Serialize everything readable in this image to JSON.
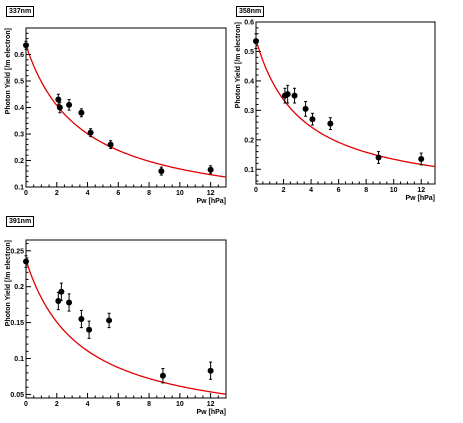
{
  "chart_data": [
    {
      "type": "scatter",
      "title": "337nm",
      "xlabel": "Pw [hPa]",
      "ylabel": "Photon Yield [/m electron]",
      "xlim": [
        0,
        13
      ],
      "ylim": [
        0.1,
        0.7
      ],
      "xticks": [
        0,
        2,
        4,
        6,
        8,
        10,
        12
      ],
      "yticks": [
        0.1,
        0.2,
        0.3,
        0.4,
        0.5,
        0.6
      ],
      "ytick_labels": [
        "0.1",
        "0.2",
        "0.3",
        "0.4",
        "0.5",
        "0.6"
      ],
      "points": [
        {
          "x": 0.0,
          "y": 0.635,
          "err": 0.015
        },
        {
          "x": 2.1,
          "y": 0.43,
          "err": 0.02
        },
        {
          "x": 2.2,
          "y": 0.4,
          "err": 0.02
        },
        {
          "x": 2.8,
          "y": 0.41,
          "err": 0.02
        },
        {
          "x": 3.6,
          "y": 0.38,
          "err": 0.015
        },
        {
          "x": 4.2,
          "y": 0.305,
          "err": 0.015
        },
        {
          "x": 5.5,
          "y": 0.26,
          "err": 0.015
        },
        {
          "x": 8.8,
          "y": 0.16,
          "err": 0.015
        },
        {
          "x": 12.0,
          "y": 0.165,
          "err": 0.015
        }
      ],
      "fit": {
        "y0": 0.635,
        "p": 3.6
      },
      "grid": false,
      "fit_color": "#e00000",
      "marker_color": "#000000"
    },
    {
      "type": "scatter",
      "title": "358nm",
      "xlabel": "Pw [hPa]",
      "ylabel": "Photon Yield [/m electron]",
      "xlim": [
        0,
        13
      ],
      "ylim": [
        0.05,
        0.6
      ],
      "xticks": [
        0,
        2,
        4,
        6,
        8,
        10,
        12
      ],
      "yticks": [
        0.1,
        0.2,
        0.3,
        0.4,
        0.5,
        0.6
      ],
      "ytick_labels": [
        "0.1",
        "0.2",
        "0.3",
        "0.4",
        "0.5",
        "0.6"
      ],
      "points": [
        {
          "x": 0.0,
          "y": 0.535,
          "err": 0.025
        },
        {
          "x": 2.1,
          "y": 0.35,
          "err": 0.025
        },
        {
          "x": 2.3,
          "y": 0.355,
          "err": 0.03
        },
        {
          "x": 2.8,
          "y": 0.35,
          "err": 0.025
        },
        {
          "x": 3.6,
          "y": 0.305,
          "err": 0.025
        },
        {
          "x": 4.1,
          "y": 0.27,
          "err": 0.02
        },
        {
          "x": 5.4,
          "y": 0.255,
          "err": 0.02
        },
        {
          "x": 8.9,
          "y": 0.14,
          "err": 0.02
        },
        {
          "x": 12.0,
          "y": 0.135,
          "err": 0.02
        }
      ],
      "fit": {
        "y0": 0.54,
        "p": 3.3
      },
      "grid": false,
      "fit_color": "#e00000",
      "marker_color": "#000000"
    },
    {
      "type": "scatter",
      "title": "391nm",
      "xlabel": "Pw [hPa]",
      "ylabel": "Photon Yield [/m electron]",
      "xlim": [
        0,
        13
      ],
      "ylim": [
        0.045,
        0.265
      ],
      "xticks": [
        0,
        2,
        4,
        6,
        8,
        10,
        12
      ],
      "yticks": [
        0.05,
        0.1,
        0.15,
        0.2,
        0.25
      ],
      "ytick_labels": [
        "0.05",
        "0.1",
        "0.15",
        "0.2",
        "0.25"
      ],
      "points": [
        {
          "x": 0.0,
          "y": 0.235,
          "err": 0.008
        },
        {
          "x": 2.1,
          "y": 0.18,
          "err": 0.012
        },
        {
          "x": 2.3,
          "y": 0.193,
          "err": 0.012
        },
        {
          "x": 2.8,
          "y": 0.178,
          "err": 0.012
        },
        {
          "x": 3.6,
          "y": 0.155,
          "err": 0.012
        },
        {
          "x": 4.1,
          "y": 0.14,
          "err": 0.012
        },
        {
          "x": 5.4,
          "y": 0.153,
          "err": 0.01
        },
        {
          "x": 8.9,
          "y": 0.076,
          "err": 0.01
        },
        {
          "x": 12.0,
          "y": 0.083,
          "err": 0.012
        }
      ],
      "fit": {
        "y0": 0.237,
        "p": 3.5
      },
      "grid": false,
      "fit_color": "#e00000",
      "marker_color": "#000000"
    }
  ]
}
